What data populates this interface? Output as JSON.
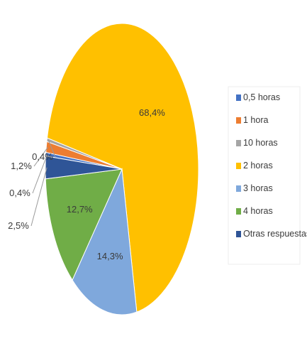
{
  "chart_data": {
    "type": "pie",
    "title": "",
    "slices": [
      {
        "label": "0,5 horas",
        "value": 0.4,
        "display": "0,4%",
        "color": "#4472c4"
      },
      {
        "label": "1 hora",
        "value": 1.2,
        "display": "1,2%",
        "color": "#ed7d31"
      },
      {
        "label": "10 horas",
        "value": 0.4,
        "display": "0,4%",
        "color": "#a5a5a5"
      },
      {
        "label": "2 horas",
        "value": 68.4,
        "display": "68,4%",
        "color": "#ffc000"
      },
      {
        "label": "3 horas",
        "value": 14.3,
        "display": "14,3%",
        "color": "#7fa8dc"
      },
      {
        "label": "4 horas",
        "value": 12.7,
        "display": "12,7%",
        "color": "#70ad47"
      },
      {
        "label": "Otras respuestas",
        "value": 2.5,
        "display": "2,5%",
        "color": "#2f5597"
      }
    ],
    "legend_position": "right"
  }
}
